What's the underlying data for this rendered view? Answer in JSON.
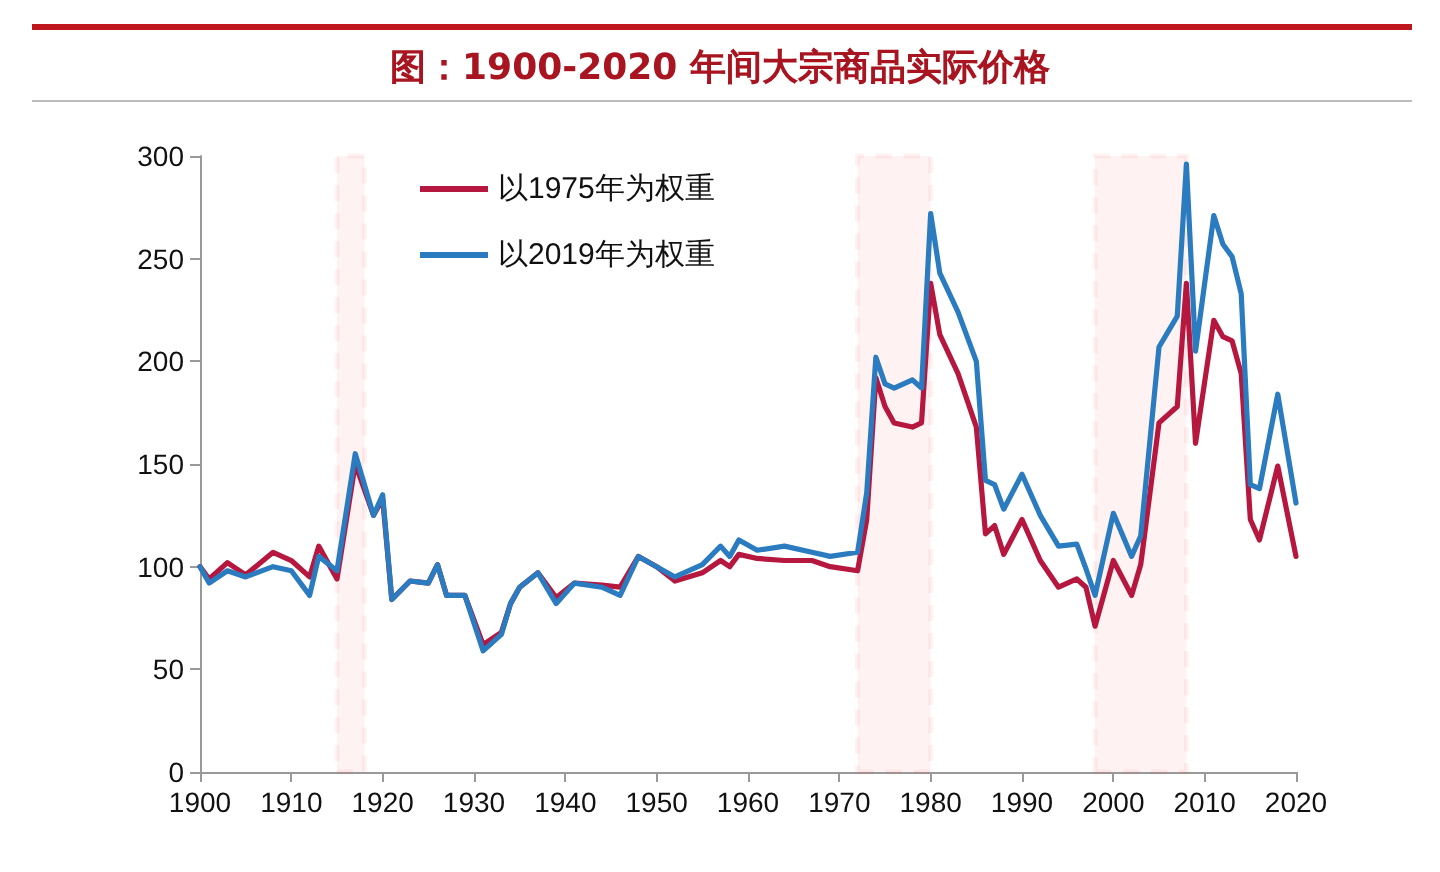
{
  "chart_data": {
    "type": "line",
    "title": "图：1900-2020 年间大宗商品实际价格",
    "x": [
      1900,
      1901,
      1903,
      1905,
      1908,
      1910,
      1912,
      1913,
      1915,
      1917,
      1919,
      1920,
      1921,
      1923,
      1925,
      1926,
      1927,
      1929,
      1931,
      1933,
      1934,
      1935,
      1937,
      1939,
      1941,
      1944,
      1946,
      1948,
      1950,
      1952,
      1955,
      1957,
      1958,
      1959,
      1961,
      1964,
      1967,
      1969,
      1972,
      1973,
      1974,
      1975,
      1976,
      1978,
      1979,
      1980,
      1981,
      1983,
      1985,
      1986,
      1987,
      1988,
      1990,
      1992,
      1994,
      1996,
      1997,
      1998,
      2000,
      2002,
      2003,
      2005,
      2007,
      2008,
      2009,
      2011,
      2012,
      2013,
      2014,
      2015,
      2016,
      2018,
      2020
    ],
    "series": [
      {
        "name": "以1975年为权重",
        "color": "#b5173f",
        "values": [
          100,
          94,
          102,
          96,
          107,
          103,
          95,
          110,
          94,
          150,
          125,
          133,
          84,
          93,
          92,
          101,
          86,
          86,
          62,
          68,
          82,
          90,
          97,
          85,
          92,
          91,
          90,
          105,
          100,
          93,
          97,
          103,
          100,
          106,
          104,
          103,
          103,
          100,
          98,
          123,
          192,
          178,
          170,
          168,
          170,
          238,
          213,
          194,
          168,
          116,
          120,
          106,
          123,
          103,
          90,
          94,
          90,
          71,
          103,
          86,
          101,
          170,
          178,
          238,
          160,
          220,
          212,
          210,
          194,
          123,
          113,
          149,
          105
        ]
      },
      {
        "name": "以2019年为权重",
        "color": "#2a7bbf",
        "values": [
          100,
          92,
          98,
          95,
          100,
          98,
          86,
          105,
          98,
          155,
          125,
          135,
          84,
          93,
          92,
          101,
          86,
          86,
          59,
          67,
          82,
          90,
          97,
          82,
          92,
          90,
          86,
          105,
          100,
          95,
          101,
          110,
          105,
          113,
          108,
          110,
          107,
          105,
          107,
          136,
          202,
          189,
          187,
          191,
          187,
          272,
          243,
          224,
          200,
          142,
          140,
          128,
          145,
          125,
          110,
          111,
          99,
          86,
          126,
          105,
          115,
          207,
          222,
          296,
          205,
          271,
          257,
          251,
          233,
          140,
          138,
          184,
          131
        ]
      }
    ],
    "xlim": [
      1900,
      2020
    ],
    "xticks": [
      1900,
      1910,
      1920,
      1930,
      1940,
      1950,
      1960,
      1970,
      1980,
      1990,
      2000,
      2010,
      2020
    ],
    "ylim": [
      0,
      300
    ],
    "yticks": [
      0,
      50,
      100,
      150,
      200,
      250,
      300
    ],
    "bands": [
      {
        "axis": "x",
        "from": 1915,
        "to": 1918,
        "color": "#e8262a"
      },
      {
        "axis": "x",
        "from": 1972,
        "to": 1980,
        "color": "#e8262a"
      },
      {
        "axis": "x",
        "from": 1998,
        "to": 2008,
        "color": "#e8262a"
      }
    ],
    "grid": false,
    "legend": "top left",
    "marker": "none",
    "line_style": "solid"
  }
}
